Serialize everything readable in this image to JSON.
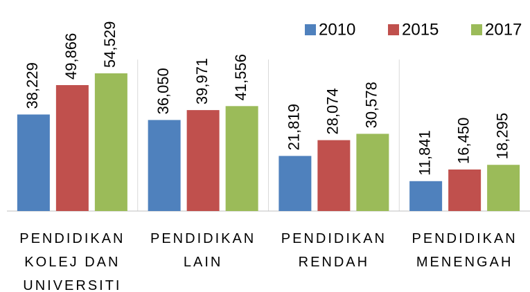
{
  "chart_data": {
    "type": "bar",
    "categories": [
      "PENDIDIKAN KOLEJ DAN UNIVERSITI",
      "PENDIDIKAN LAIN",
      "PENDIDIKAN RENDAH",
      "PENDIDIKAN MENENGAH"
    ],
    "series": [
      {
        "name": "2010",
        "color": "#4f81bd",
        "values": [
          38229,
          36050,
          21819,
          11841
        ],
        "value_labels": [
          "38,229",
          "36,050",
          "21,819",
          "11,841"
        ]
      },
      {
        "name": "2015",
        "color": "#c0504d",
        "values": [
          49866,
          39971,
          28074,
          16450
        ],
        "value_labels": [
          "49,866",
          "39,971",
          "28,074",
          "16,450"
        ]
      },
      {
        "name": "2017",
        "color": "#9bbb59",
        "values": [
          54529,
          41556,
          30578,
          18295
        ],
        "value_labels": [
          "54,529",
          "41,556",
          "30,578",
          "18,295"
        ]
      }
    ],
    "ylim": [
      0,
      60000
    ],
    "legend": "top-right"
  }
}
